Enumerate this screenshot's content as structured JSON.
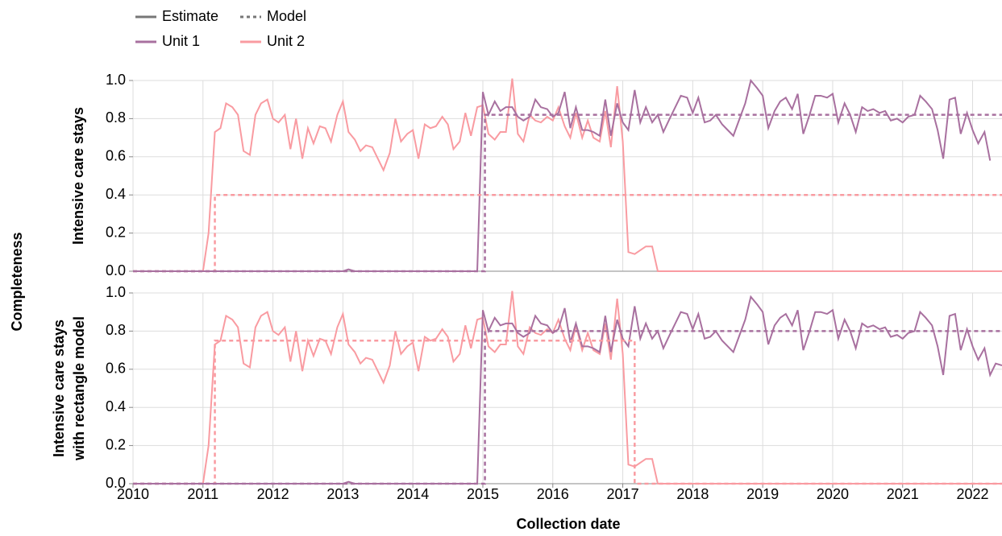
{
  "xlabel": "Collection date",
  "ylabel": "Completeness",
  "legend": {
    "styles": [
      {
        "name": "Estimate",
        "color": "#777777",
        "dash": false
      },
      {
        "name": "Model",
        "color": "#777777",
        "dash": true
      }
    ],
    "units": [
      {
        "name": "Unit 1",
        "color": "#a8709f"
      },
      {
        "name": "Unit 2",
        "color": "#f99ba1"
      }
    ]
  },
  "chart_data": [
    {
      "type": "line",
      "ylabel_lines": [
        "Intensive care stays"
      ],
      "xlim": [
        2010,
        2022.42
      ],
      "xticks": [],
      "ylim": [
        0,
        1.0
      ],
      "yticks": [
        {
          "value": 0,
          "label": "0.0"
        },
        0.2,
        0.4,
        0.6,
        0.8,
        {
          "value": 1,
          "label": "1.0"
        }
      ],
      "grid": true,
      "grid_x": [
        2010,
        2011,
        2012,
        2013,
        2014,
        2015,
        2016,
        2017,
        2018,
        2019,
        2020,
        2021,
        2022
      ],
      "series": [
        {
          "name": "Unit 2",
          "color": "#f99ba1",
          "dash": false,
          "x": [
            2010,
            2011.0,
            2011.08,
            2011.17,
            2011.25,
            2011.33,
            2011.42,
            2011.5,
            2011.58,
            2011.67,
            2011.75,
            2011.83,
            2011.92,
            2012.0,
            2012.08,
            2012.17,
            2012.25,
            2012.33,
            2012.42,
            2012.5,
            2012.58,
            2012.67,
            2012.75,
            2012.83,
            2012.92,
            2013.0,
            2013.08,
            2013.17,
            2013.25,
            2013.33,
            2013.42,
            2013.5,
            2013.58,
            2013.67,
            2013.75,
            2013.83,
            2013.92,
            2014.0,
            2014.08,
            2014.17,
            2014.25,
            2014.33,
            2014.42,
            2014.5,
            2014.58,
            2014.67,
            2014.75,
            2014.83,
            2014.92,
            2015.0,
            2015.08,
            2015.17,
            2015.25,
            2015.33,
            2015.42,
            2015.5,
            2015.58,
            2015.67,
            2015.75,
            2015.83,
            2015.92,
            2016.0,
            2016.08,
            2016.17,
            2016.25,
            2016.33,
            2016.42,
            2016.5,
            2016.58,
            2016.67,
            2016.75,
            2016.83,
            2016.92,
            2017.0,
            2017.08,
            2017.17,
            2017.25,
            2017.33,
            2017.42,
            2017.5,
            2022.42
          ],
          "values": [
            0,
            0,
            0.2,
            0.73,
            0.75,
            0.88,
            0.86,
            0.82,
            0.63,
            0.61,
            0.82,
            0.88,
            0.9,
            0.8,
            0.78,
            0.82,
            0.64,
            0.8,
            0.59,
            0.75,
            0.67,
            0.76,
            0.75,
            0.68,
            0.82,
            0.89,
            0.73,
            0.69,
            0.63,
            0.66,
            0.65,
            0.59,
            0.53,
            0.62,
            0.8,
            0.68,
            0.72,
            0.74,
            0.59,
            0.77,
            0.75,
            0.76,
            0.81,
            0.77,
            0.64,
            0.68,
            0.83,
            0.71,
            0.86,
            0.87,
            0.72,
            0.69,
            0.73,
            0.73,
            1.01,
            0.72,
            0.68,
            0.82,
            0.79,
            0.78,
            0.81,
            0.79,
            0.86,
            0.76,
            0.7,
            0.83,
            0.7,
            0.79,
            0.7,
            0.68,
            0.84,
            0.65,
            0.97,
            0.68,
            0.1,
            0.09,
            0.11,
            0.13,
            0.13,
            0,
            0
          ]
        },
        {
          "name": "Unit 1",
          "color": "#a8709f",
          "dash": false,
          "x": [
            2010,
            2013.0,
            2013.08,
            2013.17,
            2014.92,
            2015.0,
            2015.08,
            2015.17,
            2015.25,
            2015.33,
            2015.42,
            2015.5,
            2015.58,
            2015.67,
            2015.75,
            2015.83,
            2015.92,
            2016.0,
            2016.08,
            2016.17,
            2016.25,
            2016.33,
            2016.42,
            2016.5,
            2016.58,
            2016.67,
            2016.75,
            2016.83,
            2016.92,
            2017.0,
            2017.08,
            2017.17,
            2017.25,
            2017.33,
            2017.42,
            2017.5,
            2017.58,
            2017.67,
            2017.75,
            2017.83,
            2017.92,
            2018.0,
            2018.08,
            2018.17,
            2018.25,
            2018.33,
            2018.42,
            2018.5,
            2018.58,
            2018.67,
            2018.75,
            2018.83,
            2018.92,
            2019.0,
            2019.08,
            2019.17,
            2019.25,
            2019.33,
            2019.42,
            2019.5,
            2019.58,
            2019.67,
            2019.75,
            2019.83,
            2019.92,
            2020.0,
            2020.08,
            2020.17,
            2020.25,
            2020.33,
            2020.42,
            2020.5,
            2020.58,
            2020.67,
            2020.75,
            2020.83,
            2020.92,
            2021.0,
            2021.08,
            2021.17,
            2021.25,
            2021.33,
            2021.42,
            2021.5,
            2021.58,
            2021.67,
            2021.75,
            2021.83,
            2021.92,
            2022.0,
            2022.08,
            2022.17,
            2022.25
          ],
          "values": [
            0,
            0,
            0.01,
            0,
            0,
            0.94,
            0.82,
            0.89,
            0.84,
            0.86,
            0.86,
            0.81,
            0.79,
            0.81,
            0.9,
            0.86,
            0.85,
            0.81,
            0.83,
            0.94,
            0.75,
            0.86,
            0.74,
            0.74,
            0.73,
            0.71,
            0.9,
            0.71,
            0.88,
            0.78,
            0.74,
            0.95,
            0.78,
            0.86,
            0.78,
            0.82,
            0.73,
            0.8,
            0.86,
            0.92,
            0.91,
            0.83,
            0.91,
            0.78,
            0.79,
            0.82,
            0.77,
            0.74,
            0.71,
            0.8,
            0.88,
            1.0,
            0.96,
            0.92,
            0.75,
            0.84,
            0.89,
            0.91,
            0.85,
            0.93,
            0.72,
            0.82,
            0.92,
            0.92,
            0.91,
            0.93,
            0.78,
            0.88,
            0.82,
            0.73,
            0.86,
            0.84,
            0.85,
            0.83,
            0.84,
            0.79,
            0.8,
            0.78,
            0.81,
            0.82,
            0.92,
            0.89,
            0.85,
            0.74,
            0.59,
            0.9,
            0.91,
            0.72,
            0.83,
            0.74,
            0.67,
            0.73,
            0.58
          ]
        },
        {
          "name": "Unit 2",
          "color": "#f99ba1",
          "dash": true,
          "x": [
            2010,
            2011.17,
            2011.17,
            2022.42
          ],
          "values": [
            0,
            0,
            0.4,
            0.4
          ]
        },
        {
          "name": "Unit 1",
          "color": "#a8709f",
          "dash": true,
          "x": [
            2010,
            2015.03,
            2015.03,
            2022.42
          ],
          "values": [
            0,
            0,
            0.82,
            0.82
          ]
        }
      ]
    },
    {
      "type": "line",
      "ylabel_lines": [
        "Intensive care stays",
        "with rectangle model"
      ],
      "xlim": [
        2010,
        2022.42
      ],
      "xticks": [
        2010,
        2011,
        2012,
        2013,
        2014,
        2015,
        2016,
        2017,
        2018,
        2019,
        2020,
        2021,
        2022
      ],
      "ylim": [
        0,
        1.0
      ],
      "yticks": [
        {
          "value": 0,
          "label": "0.0"
        },
        0.2,
        0.4,
        0.6,
        0.8,
        {
          "value": 1,
          "label": "1.0"
        }
      ],
      "grid": true,
      "grid_x": [],
      "series": [
        {
          "name": "Unit 2",
          "color": "#f99ba1",
          "dash": false,
          "x": [
            2010,
            2011.0,
            2011.08,
            2011.17,
            2011.25,
            2011.33,
            2011.42,
            2011.5,
            2011.58,
            2011.67,
            2011.75,
            2011.83,
            2011.92,
            2012.0,
            2012.08,
            2012.17,
            2012.25,
            2012.33,
            2012.42,
            2012.5,
            2012.58,
            2012.67,
            2012.75,
            2012.83,
            2012.92,
            2013.0,
            2013.08,
            2013.17,
            2013.25,
            2013.33,
            2013.42,
            2013.5,
            2013.58,
            2013.67,
            2013.75,
            2013.83,
            2013.92,
            2014.0,
            2014.08,
            2014.17,
            2014.25,
            2014.33,
            2014.42,
            2014.5,
            2014.58,
            2014.67,
            2014.75,
            2014.83,
            2014.92,
            2015.0,
            2015.08,
            2015.17,
            2015.25,
            2015.33,
            2015.42,
            2015.5,
            2015.58,
            2015.67,
            2015.75,
            2015.83,
            2015.92,
            2016.0,
            2016.08,
            2016.17,
            2016.25,
            2016.33,
            2016.42,
            2016.5,
            2016.58,
            2016.67,
            2016.75,
            2016.83,
            2016.92,
            2017.0,
            2017.08,
            2017.17,
            2017.25,
            2017.33,
            2017.42,
            2017.5,
            2022.42
          ],
          "values": [
            0,
            0,
            0.2,
            0.73,
            0.75,
            0.88,
            0.86,
            0.82,
            0.63,
            0.61,
            0.82,
            0.88,
            0.9,
            0.8,
            0.78,
            0.82,
            0.64,
            0.8,
            0.59,
            0.75,
            0.67,
            0.76,
            0.75,
            0.68,
            0.82,
            0.89,
            0.73,
            0.69,
            0.63,
            0.66,
            0.65,
            0.59,
            0.53,
            0.62,
            0.8,
            0.68,
            0.72,
            0.74,
            0.59,
            0.77,
            0.75,
            0.76,
            0.81,
            0.77,
            0.64,
            0.68,
            0.83,
            0.71,
            0.86,
            0.87,
            0.72,
            0.69,
            0.73,
            0.73,
            1.01,
            0.72,
            0.68,
            0.82,
            0.79,
            0.78,
            0.81,
            0.79,
            0.86,
            0.76,
            0.7,
            0.83,
            0.7,
            0.79,
            0.7,
            0.68,
            0.84,
            0.65,
            0.97,
            0.68,
            0.1,
            0.09,
            0.11,
            0.13,
            0.13,
            0,
            0
          ]
        },
        {
          "name": "Unit 1",
          "color": "#a8709f",
          "dash": false,
          "x": [
            2010,
            2013.0,
            2013.08,
            2013.17,
            2014.92,
            2015.0,
            2015.08,
            2015.17,
            2015.25,
            2015.33,
            2015.42,
            2015.5,
            2015.58,
            2015.67,
            2015.75,
            2015.83,
            2015.92,
            2016.0,
            2016.08,
            2016.17,
            2016.25,
            2016.33,
            2016.42,
            2016.5,
            2016.58,
            2016.67,
            2016.75,
            2016.83,
            2016.92,
            2017.0,
            2017.08,
            2017.17,
            2017.25,
            2017.33,
            2017.42,
            2017.5,
            2017.58,
            2017.67,
            2017.75,
            2017.83,
            2017.92,
            2018.0,
            2018.08,
            2018.17,
            2018.25,
            2018.33,
            2018.42,
            2018.5,
            2018.58,
            2018.67,
            2018.75,
            2018.83,
            2018.92,
            2019.0,
            2019.08,
            2019.17,
            2019.25,
            2019.33,
            2019.42,
            2019.5,
            2019.58,
            2019.67,
            2019.75,
            2019.83,
            2019.92,
            2020.0,
            2020.08,
            2020.17,
            2020.25,
            2020.33,
            2020.42,
            2020.5,
            2020.58,
            2020.67,
            2020.75,
            2020.83,
            2020.92,
            2021.0,
            2021.08,
            2021.17,
            2021.25,
            2021.33,
            2021.42,
            2021.5,
            2021.58,
            2021.67,
            2021.75,
            2021.83,
            2021.92,
            2022.0,
            2022.08,
            2022.17,
            2022.25,
            2022.33,
            2022.42
          ],
          "values": [
            0,
            0,
            0.01,
            0,
            0,
            0.91,
            0.8,
            0.87,
            0.83,
            0.84,
            0.84,
            0.79,
            0.77,
            0.79,
            0.88,
            0.84,
            0.83,
            0.79,
            0.81,
            0.92,
            0.74,
            0.84,
            0.72,
            0.72,
            0.71,
            0.69,
            0.88,
            0.69,
            0.86,
            0.76,
            0.72,
            0.93,
            0.76,
            0.84,
            0.76,
            0.8,
            0.71,
            0.78,
            0.84,
            0.9,
            0.89,
            0.81,
            0.89,
            0.76,
            0.77,
            0.8,
            0.75,
            0.72,
            0.69,
            0.78,
            0.86,
            0.98,
            0.94,
            0.9,
            0.73,
            0.83,
            0.87,
            0.89,
            0.83,
            0.91,
            0.7,
            0.8,
            0.9,
            0.9,
            0.89,
            0.91,
            0.76,
            0.86,
            0.8,
            0.71,
            0.84,
            0.82,
            0.83,
            0.81,
            0.82,
            0.77,
            0.78,
            0.76,
            0.79,
            0.8,
            0.9,
            0.87,
            0.83,
            0.72,
            0.57,
            0.88,
            0.89,
            0.7,
            0.81,
            0.72,
            0.65,
            0.71,
            0.57,
            0.63,
            0.62
          ]
        },
        {
          "name": "Unit 2",
          "color": "#f99ba1",
          "dash": true,
          "x": [
            2010,
            2011.17,
            2011.17,
            2017.17,
            2017.17,
            2022.42
          ],
          "values": [
            0,
            0,
            0.75,
            0.75,
            0,
            0
          ]
        },
        {
          "name": "Unit 1",
          "color": "#a8709f",
          "dash": true,
          "x": [
            2010,
            2015.03,
            2015.03,
            2022.42
          ],
          "values": [
            0,
            0,
            0.8,
            0.8
          ]
        }
      ]
    }
  ]
}
